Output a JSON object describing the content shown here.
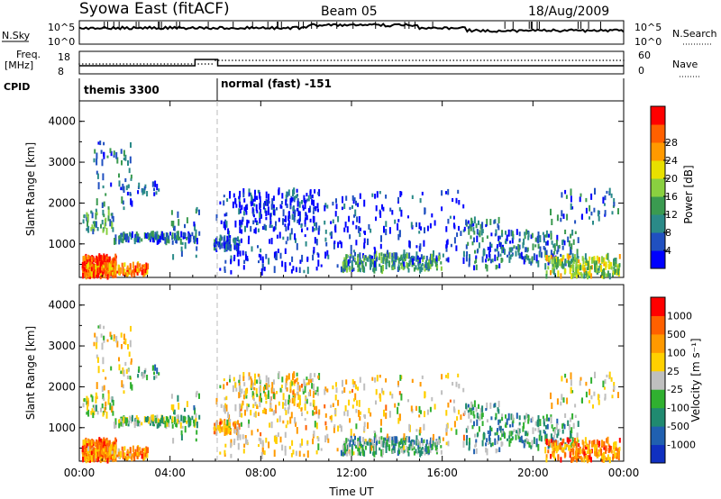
{
  "header": {
    "station": "Syowa East (fitACF)",
    "beam": "Beam 05",
    "date": "18/Aug/2009"
  },
  "panels": {
    "nsky": {
      "label": "N.Sky",
      "top_tick": "10^5",
      "bottom_tick": "10^0",
      "right_label": "N.Search",
      "right_top_tick": "10^5",
      "right_bottom_tick": "10^0"
    },
    "freq": {
      "label_line1": "Freq.",
      "label_line2": "[MHz]",
      "top_tick": "18",
      "bottom_tick": "8",
      "right_label": "Nave",
      "right_top_tick": "60",
      "right_bottom_tick": "0"
    },
    "cpid": {
      "label": "CPID",
      "mode1": "themis 3300",
      "mode2": "normal (fast) -151"
    }
  },
  "colors": {
    "power_scale": [
      "#0000ff",
      "#2050c0",
      "#2a8a88",
      "#3a9a50",
      "#8ad040",
      "#e8e000",
      "#ff9900",
      "#ff6000",
      "#ff0000"
    ],
    "velocity_scale": [
      "#1030c0",
      "#2060b0",
      "#208a70",
      "#30b030",
      "#bfbfbf",
      "#ffd000",
      "#ff9900",
      "#ff6000",
      "#ff0000"
    ]
  },
  "chart_data": [
    {
      "type": "heatmap",
      "title": "Power",
      "ylabel": "Slant Range [km]",
      "xlabel": "",
      "ylim": [
        180,
        4500
      ],
      "xlim": [
        0,
        24
      ],
      "xticks": [
        "00:00",
        "04:00",
        "08:00",
        "12:00",
        "16:00",
        "20:00",
        "00:00"
      ],
      "yticks": [
        "1000",
        "2000",
        "3000",
        "4000"
      ],
      "colorbar_label": "Power [dB]",
      "colorbar_ticks": [
        "4",
        "8",
        "12",
        "16",
        "20",
        "24",
        "28"
      ]
    },
    {
      "type": "heatmap",
      "title": "Velocity",
      "ylabel": "Slant Range [km]",
      "xlabel": "Time UT",
      "ylim": [
        180,
        4500
      ],
      "xlim": [
        0,
        24
      ],
      "xticks": [
        "00:00",
        "04:00",
        "08:00",
        "12:00",
        "16:00",
        "20:00",
        "00:00"
      ],
      "yticks": [
        "1000",
        "2000",
        "3000",
        "4000"
      ],
      "colorbar_label": "Velocity [m s⁻¹]",
      "colorbar_ticks": [
        "1000",
        "500",
        "100",
        "25",
        "-25",
        "-100",
        "-500",
        "-1000"
      ]
    }
  ]
}
